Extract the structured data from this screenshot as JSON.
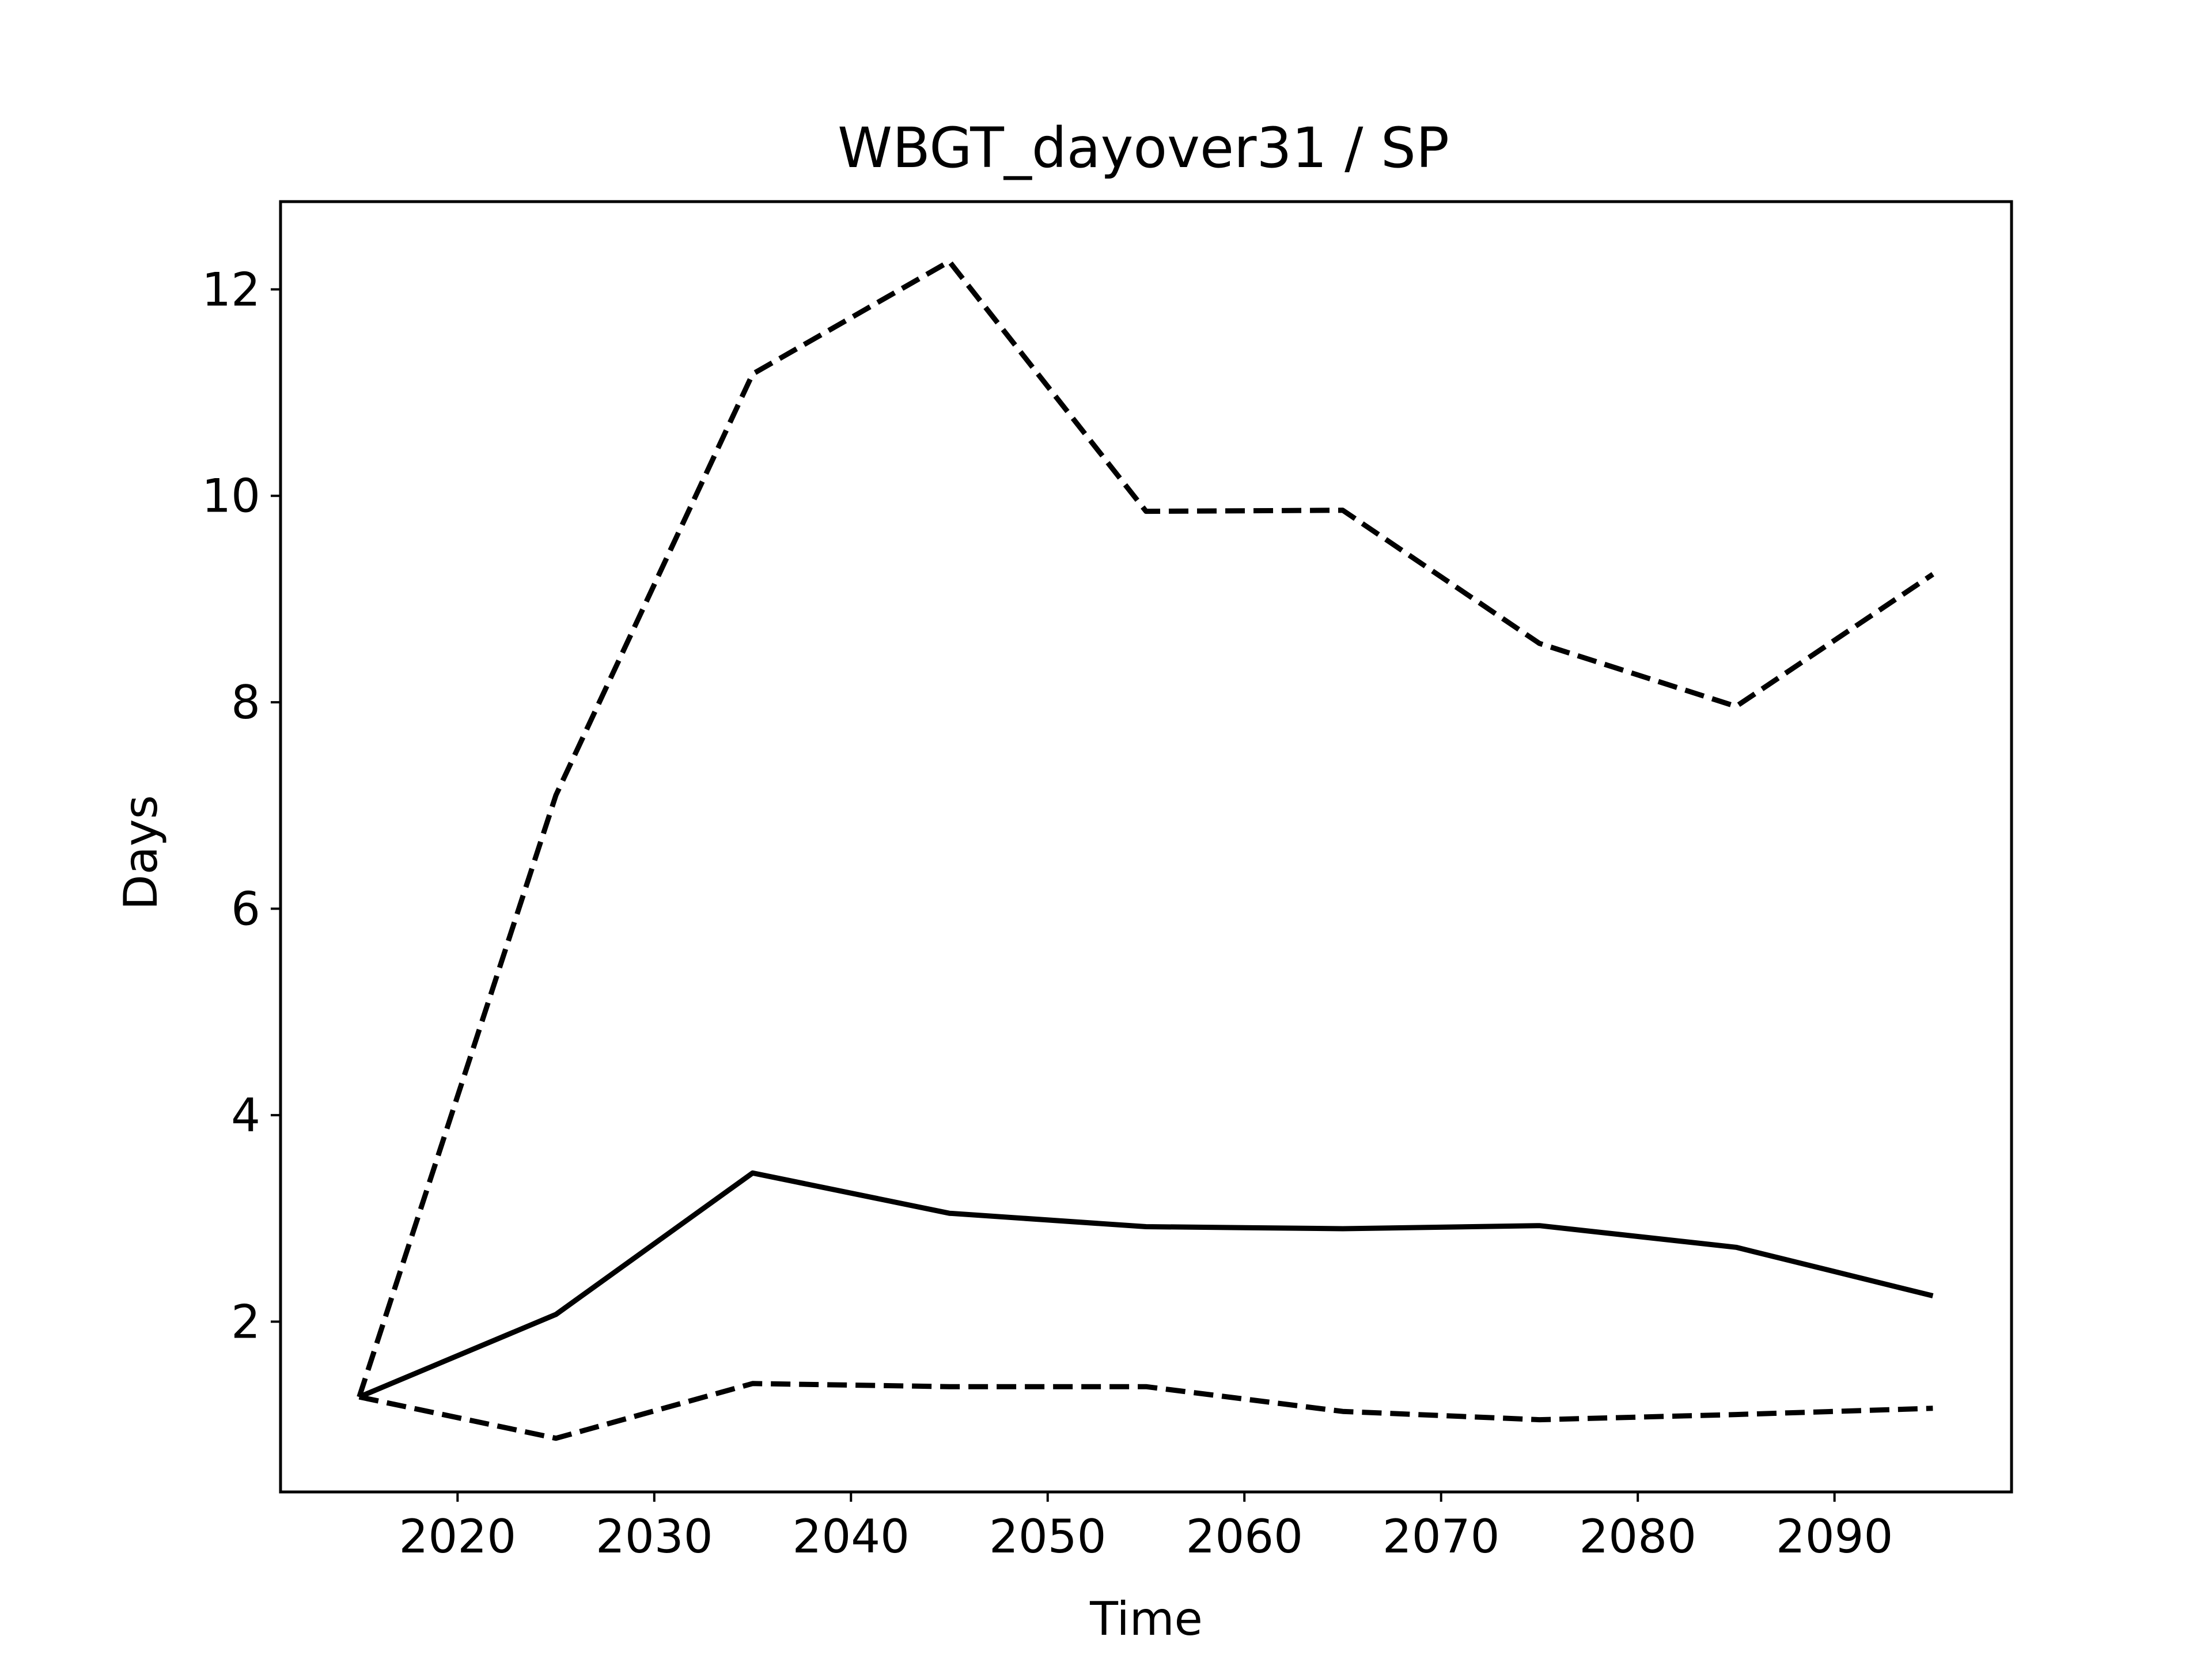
{
  "chart_data": {
    "type": "line",
    "title": "WBGT_dayover31 / SP",
    "xlabel": "Time",
    "ylabel": "Days",
    "xlim": [
      2011,
      2099
    ],
    "ylim": [
      0.35,
      12.85
    ],
    "xticks": [
      2020,
      2030,
      2040,
      2050,
      2060,
      2070,
      2080,
      2090
    ],
    "yticks": [
      2,
      4,
      6,
      8,
      10,
      12
    ],
    "grid": false,
    "legend": "none",
    "x": [
      2015,
      2025,
      2035,
      2045,
      2055,
      2065,
      2075,
      2085,
      2095
    ],
    "series": [
      {
        "style": "solid",
        "color": "#000000",
        "values": [
          1.27,
          2.07,
          3.44,
          3.05,
          2.92,
          2.9,
          2.93,
          2.72,
          2.25
        ]
      },
      {
        "style": "dashed",
        "color": "#000000",
        "values": [
          1.27,
          7.1,
          11.18,
          12.27,
          9.85,
          9.86,
          8.57,
          7.96,
          9.24
        ]
      },
      {
        "style": "dashed",
        "color": "#000000",
        "values": [
          1.27,
          0.87,
          1.4,
          1.37,
          1.37,
          1.13,
          1.05,
          1.1,
          1.16
        ]
      }
    ]
  }
}
